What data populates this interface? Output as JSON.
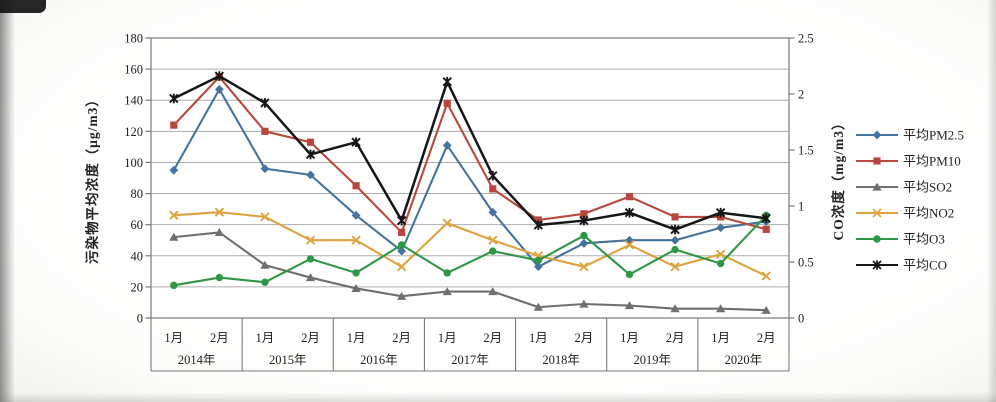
{
  "frame": {
    "background": "#fdfdfc"
  },
  "chart_data": {
    "type": "line",
    "title": "",
    "left_axis": {
      "label": "污染物平均浓度（μg/m3）",
      "min": 0,
      "max": 180,
      "step": 20,
      "ticks": [
        "180",
        "160",
        "140",
        "120",
        "100",
        "80",
        "60",
        "40",
        "20",
        "0"
      ]
    },
    "right_axis": {
      "label": "CO浓度（mg/m3）",
      "min": 0,
      "max": 2.5,
      "step": 0.5,
      "ticks": [
        "2.5",
        "2",
        "1.5",
        "1",
        "0.5",
        "0"
      ]
    },
    "x_axis": {
      "months": [
        "1月",
        "2月"
      ],
      "years": [
        "2014年",
        "2015年",
        "2016年",
        "2017年",
        "2018年",
        "2019年",
        "2020年"
      ]
    },
    "grid": true,
    "legend_position": "right",
    "series": [
      {
        "key": "pm25",
        "name": "平均PM2.5",
        "color": "#45739F",
        "marker": "diamond",
        "axis": "left",
        "values": [
          95,
          147,
          96,
          92,
          66,
          43,
          111,
          68,
          33,
          48,
          50,
          50,
          58,
          62
        ]
      },
      {
        "key": "pm10",
        "name": "平均PM10",
        "color": "#B9473E",
        "marker": "square",
        "axis": "left",
        "values": [
          124,
          155,
          120,
          113,
          85,
          55,
          138,
          83,
          63,
          67,
          78,
          65,
          65,
          57
        ]
      },
      {
        "key": "so2",
        "name": "平均SO2",
        "color": "#6F6F6F",
        "marker": "triangle",
        "axis": "left",
        "values": [
          52,
          55,
          34,
          26,
          19,
          14,
          17,
          17,
          7,
          9,
          8,
          6,
          6,
          5
        ]
      },
      {
        "key": "no2",
        "name": "平均NO2",
        "color": "#DEA23E",
        "marker": "x",
        "axis": "left",
        "values": [
          66,
          68,
          65,
          50,
          50,
          33,
          61,
          50,
          40,
          33,
          47,
          33,
          41,
          27
        ]
      },
      {
        "key": "o3",
        "name": "平均O3",
        "color": "#2F9647",
        "marker": "circle",
        "axis": "left",
        "values": [
          21,
          26,
          23,
          38,
          29,
          47,
          29,
          43,
          37,
          53,
          28,
          44,
          35,
          66
        ]
      },
      {
        "key": "co",
        "name": "平均CO",
        "color": "#161616",
        "marker": "asterisk",
        "axis": "right",
        "values": [
          1.96,
          2.16,
          1.92,
          1.46,
          1.57,
          0.87,
          2.11,
          1.27,
          0.83,
          0.87,
          0.94,
          0.79,
          0.94,
          0.89
        ]
      }
    ]
  }
}
